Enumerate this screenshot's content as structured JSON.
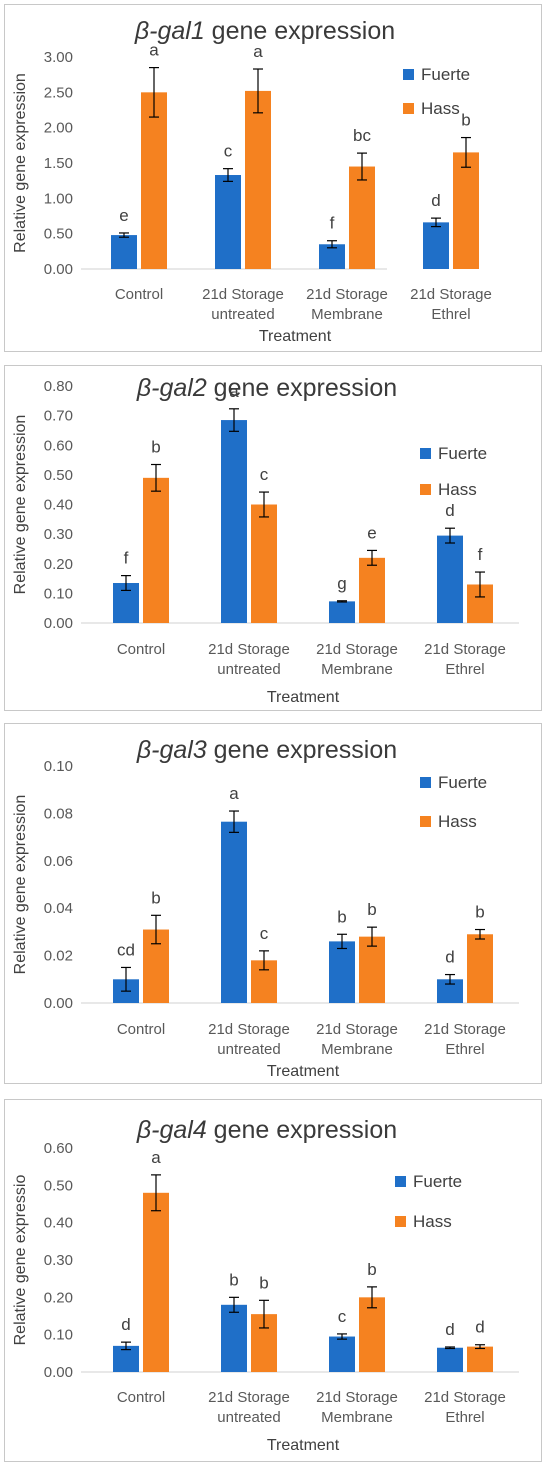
{
  "colors": {
    "fuerte": "#1f6fc8",
    "hass": "#f58220",
    "axis": "#d0d0d0",
    "errorbar": "#000000"
  },
  "chart_data": [
    {
      "type": "bar",
      "title_prefix": "β-",
      "title_gene": "gal1",
      "title_suffix": " gene expression",
      "xlabel": "Treatment",
      "ylabel": "Relative gene expression",
      "ylim": [
        0,
        3.0
      ],
      "yticks": [
        "0.00",
        "0.50",
        "1.00",
        "1.50",
        "2.00",
        "2.50",
        "3.00"
      ],
      "categories": [
        [
          "Control"
        ],
        [
          "21d Storage",
          "untreated"
        ],
        [
          "21d Storage",
          "Membrane"
        ],
        [
          "21d Storage",
          "Ethrel"
        ]
      ],
      "legend_position": "top-right",
      "series": [
        {
          "name": "Fuerte",
          "values": [
            0.48,
            1.33,
            0.35,
            0.66
          ],
          "errors": [
            0.03,
            0.09,
            0.05,
            0.06
          ],
          "letters": [
            "e",
            "c",
            "f",
            "d"
          ]
        },
        {
          "name": "Hass",
          "values": [
            2.5,
            2.52,
            1.45,
            1.65
          ],
          "errors": [
            0.35,
            0.31,
            0.19,
            0.21
          ],
          "letters": [
            "a",
            "a",
            "bc",
            "b"
          ]
        }
      ]
    },
    {
      "type": "bar",
      "title_prefix": "β-",
      "title_gene": "gal2",
      "title_suffix": " gene expression",
      "xlabel": "Treatment",
      "ylabel": "Relative gene expression",
      "ylim": [
        0,
        0.8
      ],
      "yticks": [
        "0.00",
        "0.10",
        "0.20",
        "0.30",
        "0.40",
        "0.50",
        "0.60",
        "0.70",
        "0.80"
      ],
      "categories": [
        [
          "Control"
        ],
        [
          "21d Storage",
          "untreated"
        ],
        [
          "21d Storage",
          "Membrane"
        ],
        [
          "21d Storage",
          "Ethrel"
        ]
      ],
      "legend_position": "top-right",
      "series": [
        {
          "name": "Fuerte",
          "values": [
            0.135,
            0.685,
            0.073,
            0.295
          ],
          "errors": [
            0.025,
            0.038,
            0.002,
            0.025
          ],
          "letters": [
            "f",
            "a",
            "g",
            "d"
          ]
        },
        {
          "name": "Hass",
          "values": [
            0.49,
            0.4,
            0.22,
            0.13
          ],
          "errors": [
            0.045,
            0.042,
            0.025,
            0.042
          ],
          "letters": [
            "b",
            "c",
            "e",
            "f"
          ]
        }
      ]
    },
    {
      "type": "bar",
      "title_prefix": "β-",
      "title_gene": "gal3",
      "title_suffix": " gene expression",
      "xlabel": "Treatment",
      "ylabel": "Relative gene expression",
      "ylim": [
        0,
        0.1
      ],
      "yticks": [
        "0.00",
        "0.02",
        "0.04",
        "0.06",
        "0.08",
        "0.10"
      ],
      "categories": [
        [
          "Control"
        ],
        [
          "21d Storage",
          "untreated"
        ],
        [
          "21d Storage",
          "Membrane"
        ],
        [
          "21d Storage",
          "Ethrel"
        ]
      ],
      "legend_position": "top-right",
      "series": [
        {
          "name": "Fuerte",
          "values": [
            0.01,
            0.0765,
            0.026,
            0.01
          ],
          "errors": [
            0.005,
            0.0045,
            0.003,
            0.002
          ],
          "letters": [
            "cd",
            "a",
            "b",
            "d"
          ]
        },
        {
          "name": "Hass",
          "values": [
            0.031,
            0.018,
            0.028,
            0.029
          ],
          "errors": [
            0.006,
            0.004,
            0.004,
            0.002
          ],
          "letters": [
            "b",
            "c",
            "b",
            "b"
          ]
        }
      ]
    },
    {
      "type": "bar",
      "title_prefix": "β-",
      "title_gene": "gal4",
      "title_suffix": " gene expression",
      "xlabel": "Treatment",
      "ylabel": "Relative gene expressio",
      "ylim": [
        0,
        0.6
      ],
      "yticks": [
        "0.00",
        "0.10",
        "0.20",
        "0.30",
        "0.40",
        "0.50",
        "0.60"
      ],
      "categories": [
        [
          "Control"
        ],
        [
          "21d Storage",
          "untreated"
        ],
        [
          "21d Storage",
          "Membrane"
        ],
        [
          "21d Storage",
          "Ethrel"
        ]
      ],
      "legend_position": "top-right",
      "series": [
        {
          "name": "Fuerte",
          "values": [
            0.07,
            0.18,
            0.095,
            0.065
          ],
          "errors": [
            0.01,
            0.02,
            0.007,
            0.002
          ],
          "letters": [
            "d",
            "b",
            "c",
            "d"
          ]
        },
        {
          "name": "Hass",
          "values": [
            0.48,
            0.155,
            0.2,
            0.068
          ],
          "errors": [
            0.048,
            0.037,
            0.028,
            0.005
          ],
          "letters": [
            "a",
            "b",
            "b",
            "d"
          ]
        }
      ]
    }
  ]
}
